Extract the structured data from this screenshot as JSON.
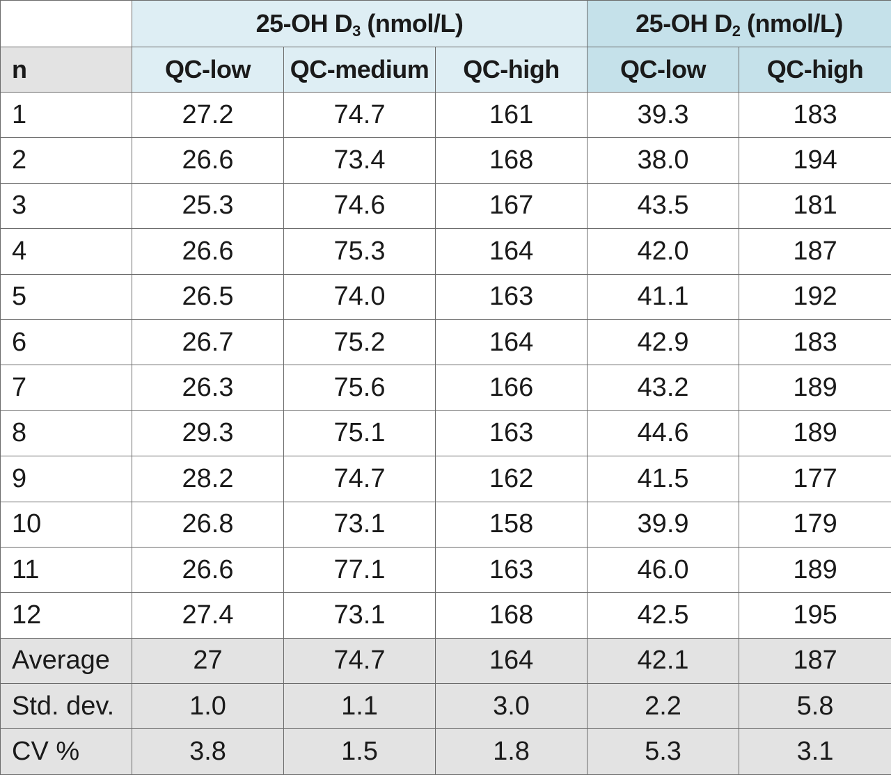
{
  "chart_data": {
    "type": "table",
    "corner_label": "",
    "groups": [
      {
        "name": "25-OH D",
        "subscript": "3",
        "unit": "(nmol/L)",
        "columns": [
          "QC-low",
          "QC-medium",
          "QC-high"
        ]
      },
      {
        "name": "25-OH D",
        "subscript": "2",
        "unit": "(nmol/L)",
        "columns": [
          "QC-low",
          "QC-high"
        ]
      }
    ],
    "row_header_label": "n",
    "rows": [
      {
        "label": "1",
        "values": [
          "27.2",
          "74.7",
          "161",
          "39.3",
          "183"
        ]
      },
      {
        "label": "2",
        "values": [
          "26.6",
          "73.4",
          "168",
          "38.0",
          "194"
        ]
      },
      {
        "label": "3",
        "values": [
          "25.3",
          "74.6",
          "167",
          "43.5",
          "181"
        ]
      },
      {
        "label": "4",
        "values": [
          "26.6",
          "75.3",
          "164",
          "42.0",
          "187"
        ]
      },
      {
        "label": "5",
        "values": [
          "26.5",
          "74.0",
          "163",
          "41.1",
          "192"
        ]
      },
      {
        "label": "6",
        "values": [
          "26.7",
          "75.2",
          "164",
          "42.9",
          "183"
        ]
      },
      {
        "label": "7",
        "values": [
          "26.3",
          "75.6",
          "166",
          "43.2",
          "189"
        ]
      },
      {
        "label": "8",
        "values": [
          "29.3",
          "75.1",
          "163",
          "44.6",
          "189"
        ]
      },
      {
        "label": "9",
        "values": [
          "28.2",
          "74.7",
          "162",
          "41.5",
          "177"
        ]
      },
      {
        "label": "10",
        "values": [
          "26.8",
          "73.1",
          "158",
          "39.9",
          "179"
        ]
      },
      {
        "label": "11",
        "values": [
          "26.6",
          "77.1",
          "163",
          "46.0",
          "189"
        ]
      },
      {
        "label": "12",
        "values": [
          "27.4",
          "73.1",
          "168",
          "42.5",
          "195"
        ]
      }
    ],
    "summary_rows": [
      {
        "label": "Average",
        "values": [
          "27",
          "74.7",
          "164",
          "42.1",
          "187"
        ]
      },
      {
        "label": "Std. dev.",
        "values": [
          "1.0",
          "1.1",
          "3.0",
          "2.2",
          "5.8"
        ]
      },
      {
        "label": "CV %",
        "values": [
          "3.8",
          "1.5",
          "1.8",
          "5.3",
          "3.1"
        ]
      }
    ],
    "colors": {
      "d3_header_bg": "#deeef4",
      "d2_header_bg": "#c5e1ea",
      "summary_bg": "#e3e3e3",
      "border": "#6b6b6b"
    }
  }
}
